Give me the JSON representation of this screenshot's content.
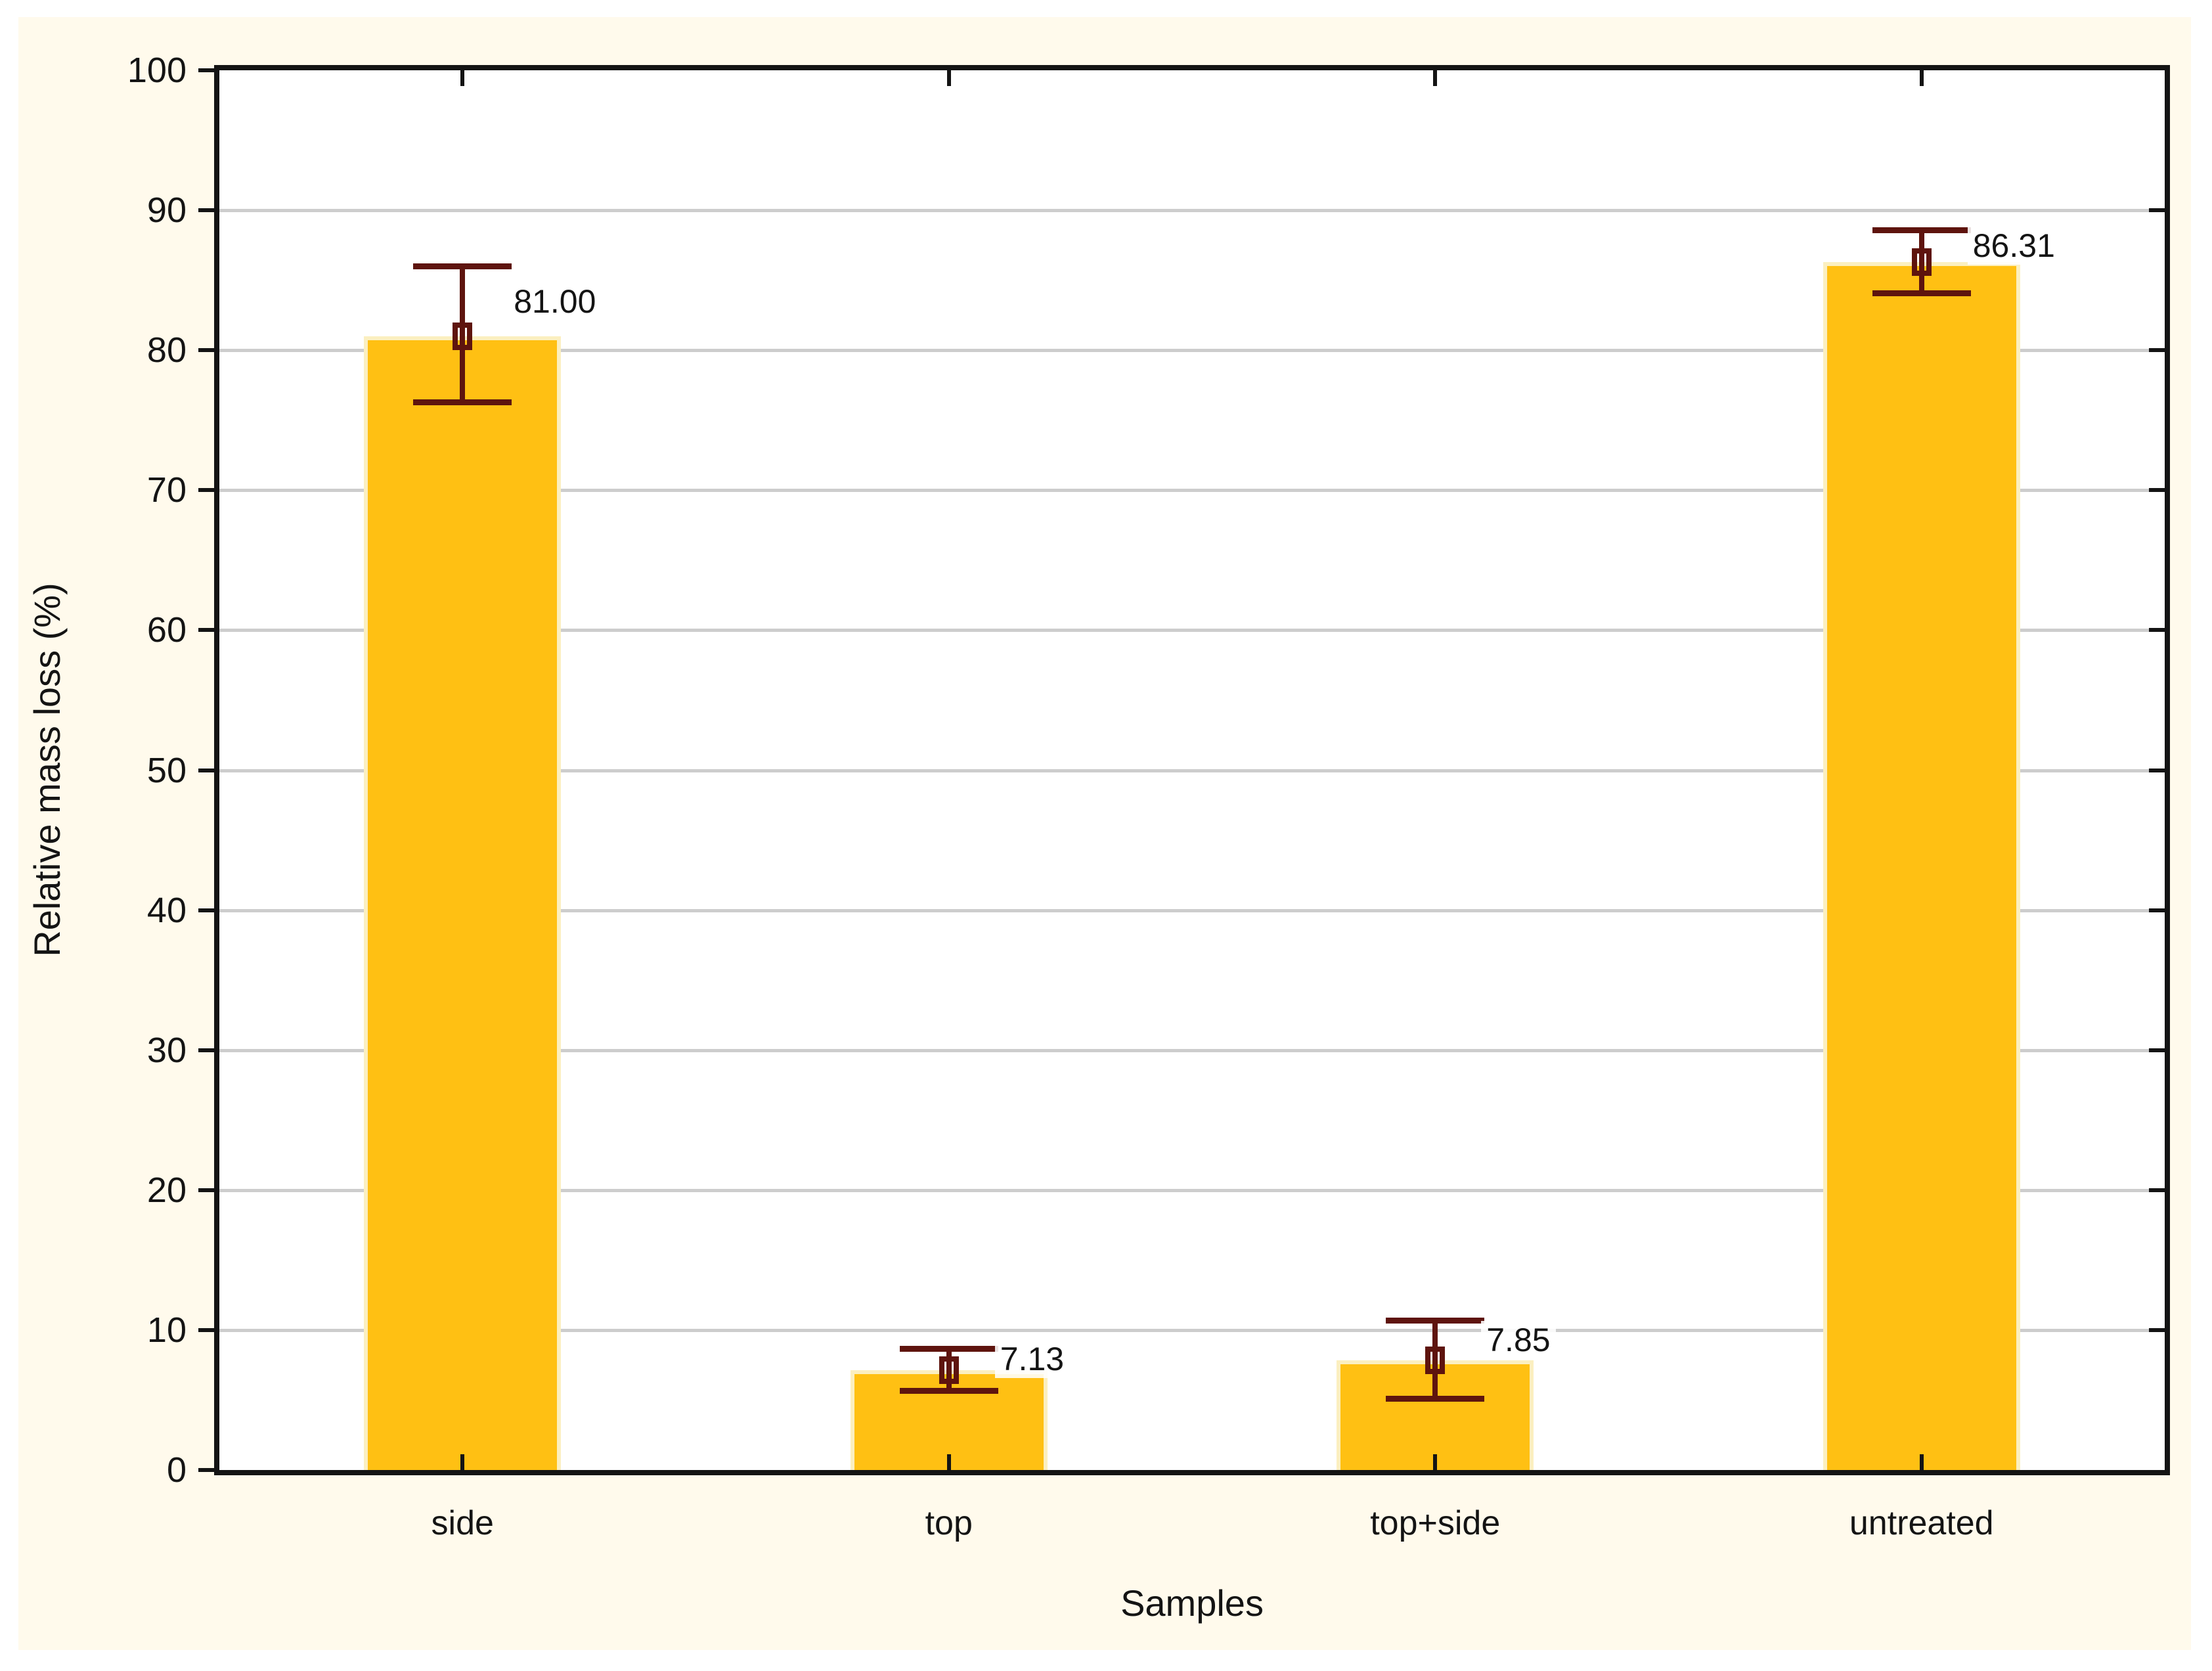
{
  "figure": {
    "outer_background": "#FFFFFF",
    "panel_background": "#FFFAEC",
    "plot_background": "#FFFFFF"
  },
  "chart_data": {
    "type": "bar",
    "title": "",
    "xlabel": "Samples",
    "ylabel": "Relative mass loss (%)",
    "categories": [
      "side",
      "top",
      "top+side",
      "untreated"
    ],
    "values": [
      81.0,
      7.13,
      7.85,
      86.31
    ],
    "value_labels": [
      "81.00",
      "7.13",
      "7.85",
      "86.31"
    ],
    "error_bars": [
      {
        "upper": 86.0,
        "lower": 76.3
      },
      {
        "upper": 8.7,
        "lower": 5.7
      },
      {
        "upper": 10.7,
        "lower": 5.1
      },
      {
        "upper": 88.6,
        "lower": 84.1
      }
    ],
    "ylim": [
      0,
      100
    ],
    "ytick_interval": 10,
    "ytick_labels": [
      "0",
      "10",
      "20",
      "30",
      "40",
      "50",
      "60",
      "70",
      "80",
      "90",
      "100"
    ],
    "grid": "horizontal",
    "legend": "none",
    "colors": {
      "bar_fill": "#FFC013",
      "bar_edge": "#FBEFC0",
      "error_bar": "#5E140E",
      "gridline": "#CDCDCD",
      "axis": "#141414",
      "text": "#141414"
    }
  }
}
